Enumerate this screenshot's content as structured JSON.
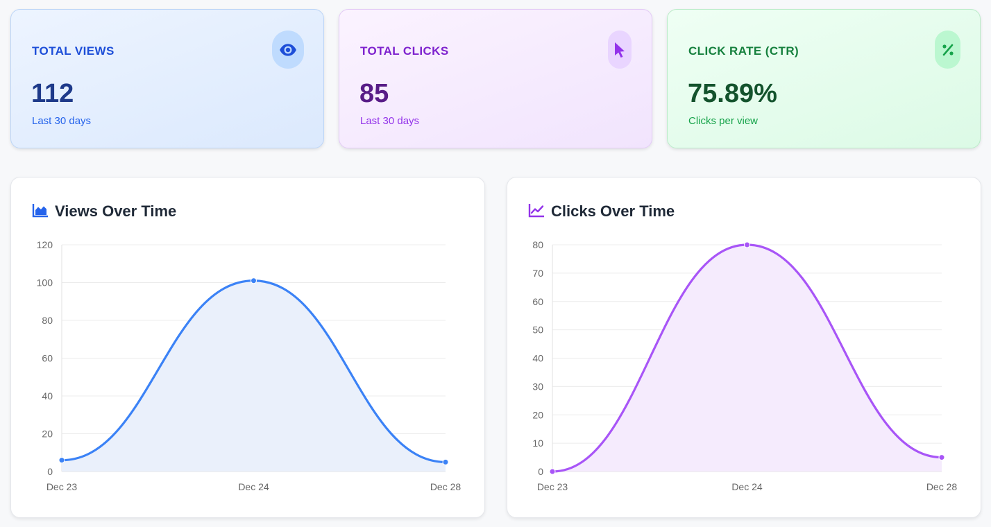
{
  "stats": [
    {
      "label": "TOTAL VIEWS",
      "value": "112",
      "sub": "Last 30 days",
      "icon": "eye-icon"
    },
    {
      "label": "TOTAL CLICKS",
      "value": "85",
      "sub": "Last 30 days",
      "icon": "cursor-pointer-icon"
    },
    {
      "label": "CLICK RATE (CTR)",
      "value": "75.89%",
      "sub": "Clicks per view",
      "icon": "percent-icon"
    }
  ],
  "colors": {
    "views_line": "#3b82f6",
    "views_fill": "#eaf0fb",
    "clicks_line": "#a855f7",
    "clicks_fill": "#f5ebfd"
  },
  "chart_data": [
    {
      "type": "line",
      "title": "Views Over Time",
      "title_icon": "area-chart-icon",
      "categories": [
        "Dec 23",
        "Dec 24",
        "Dec 28"
      ],
      "series": [
        {
          "values": [
            6,
            101,
            5
          ]
        }
      ],
      "ylim": [
        0,
        120
      ],
      "yticks": [
        0,
        20,
        40,
        60,
        80,
        100,
        120
      ],
      "xlabel": "",
      "ylabel": "",
      "grid": true,
      "fill": true,
      "smooth": true
    },
    {
      "type": "line",
      "title": "Clicks Over Time",
      "title_icon": "line-chart-icon",
      "categories": [
        "Dec 23",
        "Dec 24",
        "Dec 28"
      ],
      "series": [
        {
          "values": [
            0,
            80,
            5
          ]
        }
      ],
      "ylim": [
        0,
        80
      ],
      "yticks": [
        0,
        10,
        20,
        30,
        40,
        50,
        60,
        70,
        80
      ],
      "xlabel": "",
      "ylabel": "",
      "grid": true,
      "fill": true,
      "smooth": true
    }
  ]
}
